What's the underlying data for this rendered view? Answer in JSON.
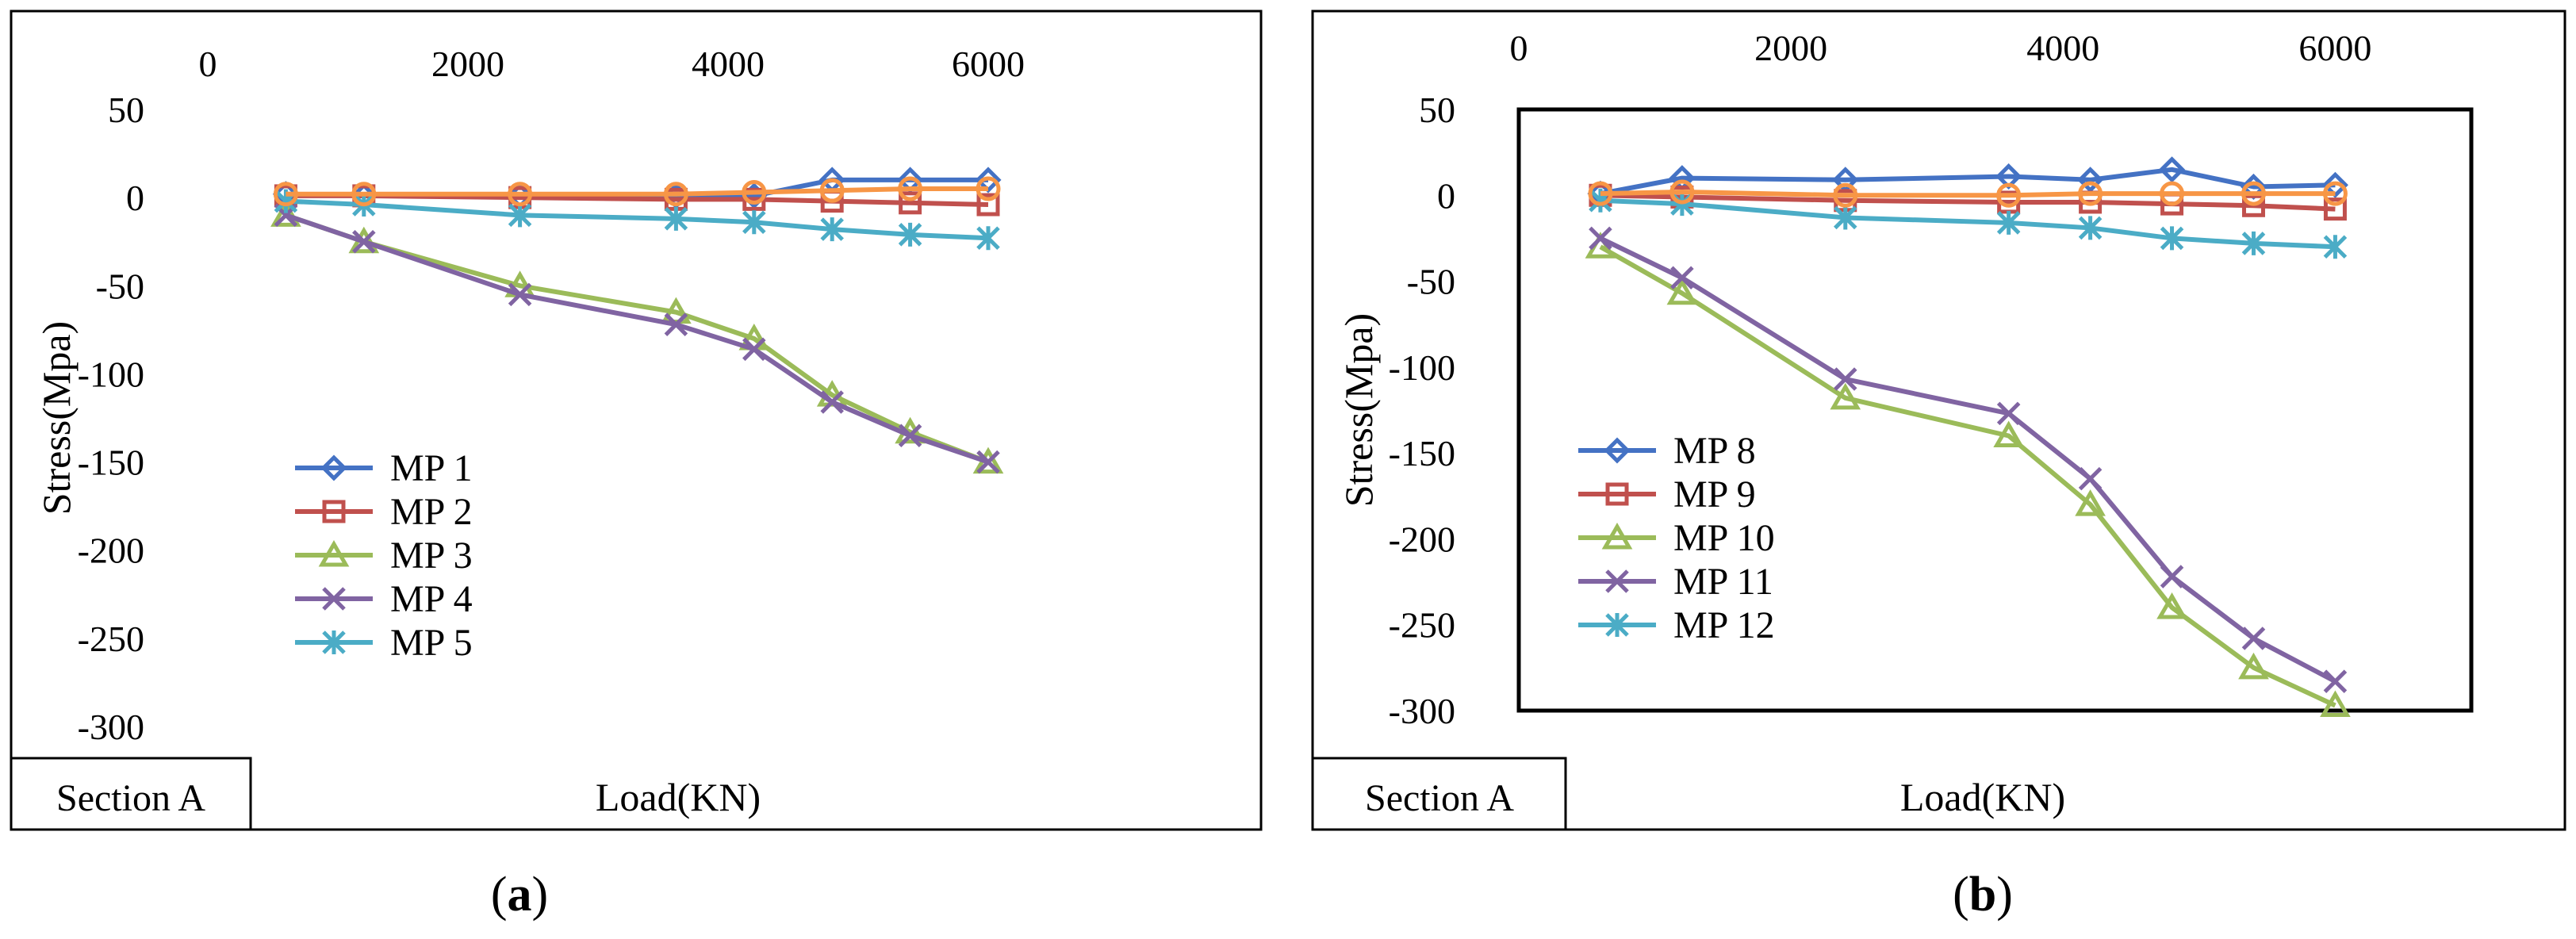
{
  "chart_data": [
    {
      "type": "line",
      "panel_label": "(a)",
      "section_label": "Section A",
      "xlabel": "Load(KN)",
      "ylabel": "Stress(Mpa)",
      "xlim": [
        0,
        7000
      ],
      "ylim": [
        -300,
        50
      ],
      "xticks": [
        0,
        2000,
        4000,
        6000
      ],
      "yticks": [
        50,
        0,
        -50,
        -100,
        -150,
        -200,
        -250,
        -300
      ],
      "x_axis_position": "top",
      "grid": false,
      "legend_position": "lower-left",
      "plot_frame": false,
      "x": [
        600,
        1200,
        2400,
        3600,
        4200,
        4800,
        5400,
        6000
      ],
      "series": [
        {
          "name": "MP 1",
          "marker": "diamond",
          "color": "#4472C4",
          "values": [
            2,
            1,
            1,
            1,
            1,
            10,
            10,
            10
          ]
        },
        {
          "name": "MP 2",
          "marker": "square",
          "color": "#C0504D",
          "values": [
            1,
            1,
            0,
            -1,
            -1,
            -2,
            -3,
            -4
          ]
        },
        {
          "name": "MP 3",
          "marker": "triangle",
          "color": "#9BBB59",
          "values": [
            -10,
            -25,
            -50,
            -65,
            -80,
            -112,
            -133,
            -150
          ]
        },
        {
          "name": "MP 4",
          "marker": "x",
          "color": "#8064A2",
          "values": [
            -10,
            -25,
            -55,
            -72,
            -86,
            -116,
            -135,
            -150
          ]
        },
        {
          "name": "MP 5",
          "marker": "star",
          "color": "#4BACC6",
          "values": [
            -2,
            -4,
            -10,
            -12,
            -14,
            -18,
            -21,
            -23
          ]
        },
        {
          "name": "",
          "marker": "circle",
          "color": "#F79646",
          "values": [
            2,
            2,
            2,
            2,
            3,
            4,
            5,
            5
          ]
        }
      ]
    },
    {
      "type": "line",
      "panel_label": "(b)",
      "section_label": "Section A",
      "xlabel": "Load(KN)",
      "ylabel": "Stress(Mpa)",
      "xlim": [
        0,
        7000
      ],
      "ylim": [
        -300,
        50
      ],
      "xticks": [
        0,
        2000,
        4000,
        6000
      ],
      "yticks": [
        50,
        0,
        -50,
        -100,
        -150,
        -200,
        -250,
        -300
      ],
      "x_axis_position": "top",
      "grid": false,
      "legend_position": "lower-left",
      "plot_frame": true,
      "x": [
        600,
        1200,
        2400,
        3600,
        4200,
        4800,
        5400,
        6000
      ],
      "series": [
        {
          "name": "MP 8",
          "marker": "diamond",
          "color": "#4472C4",
          "values": [
            1,
            10,
            9,
            11,
            9,
            15,
            5,
            6
          ]
        },
        {
          "name": "MP 9",
          "marker": "square",
          "color": "#C0504D",
          "values": [
            0,
            -1,
            -3,
            -4,
            -4,
            -5,
            -6,
            -8
          ]
        },
        {
          "name": "MP 10",
          "marker": "triangle",
          "color": "#9BBB59",
          "values": [
            -30,
            -57,
            -118,
            -140,
            -180,
            -240,
            -275,
            -297
          ]
        },
        {
          "name": "MP 11",
          "marker": "x",
          "color": "#8064A2",
          "values": [
            -25,
            -48,
            -107,
            -127,
            -165,
            -222,
            -258,
            -283
          ]
        },
        {
          "name": "MP 12",
          "marker": "star",
          "color": "#4BACC6",
          "values": [
            -3,
            -5,
            -13,
            -16,
            -19,
            -25,
            -28,
            -30
          ]
        },
        {
          "name": "",
          "marker": "circle",
          "color": "#F79646",
          "values": [
            1,
            2,
            0,
            0,
            1,
            1,
            1,
            1
          ]
        }
      ]
    }
  ]
}
